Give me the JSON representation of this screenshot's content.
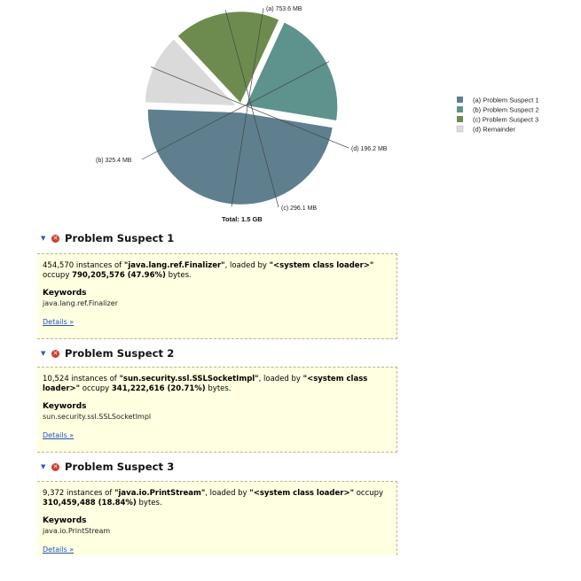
{
  "chart_data": {
    "type": "pie",
    "title": "",
    "total_label": "Total: 1.5 GB",
    "slices": [
      {
        "name": "(a) Problem Suspect 1",
        "label": "(a)  753.6 MB",
        "value": 753.6,
        "color": "#5f7f8f"
      },
      {
        "name": "(b) Problem Suspect 2",
        "label": "(b)  325.4 MB",
        "value": 325.4,
        "color": "#5e928d"
      },
      {
        "name": "(c) Problem Suspect 3",
        "label": "(c)  296.1 MB",
        "value": 296.1,
        "color": "#6e8b4f"
      },
      {
        "name": "(d) Remainder",
        "label": "(d)  196.2 MB",
        "value": 196.2,
        "color": "#dadada"
      }
    ],
    "legend_placement": "right"
  },
  "suspects": [
    {
      "title": "Problem Suspect 1",
      "line1_pre": "454,570 instances of ",
      "class_name": "\"java.lang.ref.Finalizer\"",
      "line1_mid": ", loaded by ",
      "loader": "\"<system class loader>\"",
      "occupy_pre": " occupy ",
      "bytes": "790,205,576 (47.96%)",
      "occupy_post": " bytes.",
      "keywords_label": "Keywords",
      "keyword": "java.lang.ref.Finalizer",
      "details_label": "Details »"
    },
    {
      "title": "Problem Suspect 2",
      "line1_pre": "10,524 instances of ",
      "class_name": "\"sun.security.ssl.SSLSocketImpl\"",
      "line1_mid": ", loaded by ",
      "loader": "\"<system class loader>\"",
      "occupy_pre": " occupy ",
      "bytes": "341,222,616 (20.71%)",
      "occupy_post": " bytes.",
      "keywords_label": "Keywords",
      "keyword": "sun.security.ssl.SSLSocketImpl",
      "details_label": "Details »"
    },
    {
      "title": "Problem Suspect 3",
      "line1_pre": "9,372 instances of ",
      "class_name": "\"java.io.PrintStream\"",
      "line1_mid": ", loaded by ",
      "loader": "\"<system class loader>\"",
      "occupy_pre": " occupy ",
      "bytes": "310,459,488 (18.84%)",
      "occupy_post": " bytes.",
      "keywords_label": "Keywords",
      "keyword": "java.io.PrintStream",
      "details_label": "Details »"
    }
  ],
  "icons": {
    "twisty": "twisty-expanded-icon",
    "error": "error-icon"
  }
}
